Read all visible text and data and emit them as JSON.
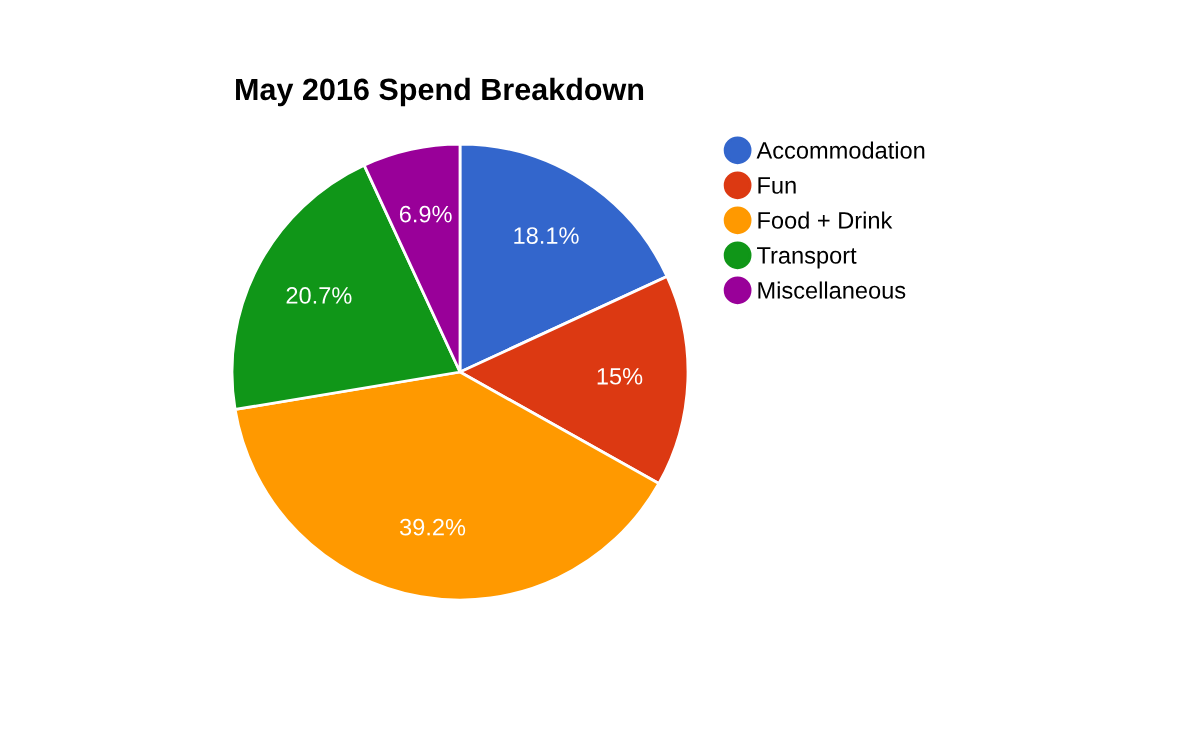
{
  "chart_data": {
    "type": "pie",
    "title": "May 2016 Spend Breakdown",
    "categories": [
      "Accommodation",
      "Fun",
      "Food + Drink",
      "Transport",
      "Miscellaneous"
    ],
    "values": [
      18.1,
      15,
      39.2,
      20.7,
      6.9
    ],
    "value_labels": [
      "18.1%",
      "15%",
      "39.2%",
      "20.7%",
      "6.9%"
    ],
    "colors": [
      "#3366cc",
      "#dc3912",
      "#ff9900",
      "#109618",
      "#990099"
    ],
    "legend": "right"
  }
}
